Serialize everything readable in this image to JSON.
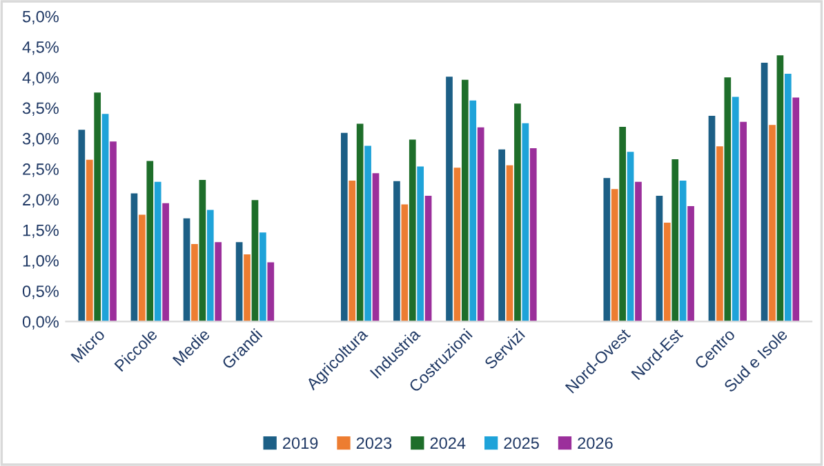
{
  "chart_data": {
    "type": "bar",
    "categories": [
      "Micro",
      "Piccole",
      "Medie",
      "Grandi",
      null,
      "Agricoltura",
      "Industria",
      "Costruzioni",
      "Servizi",
      null,
      "Nord-Ovest",
      "Nord-Est",
      "Centro",
      "Sud e Isole"
    ],
    "series": [
      {
        "name": "2019",
        "color": "#1c5f86",
        "values": [
          3.14,
          2.1,
          1.69,
          1.3,
          null,
          3.09,
          2.3,
          4.01,
          2.82,
          null,
          2.35,
          2.06,
          3.37,
          4.24
        ]
      },
      {
        "name": "2023",
        "color": "#ed7d31",
        "values": [
          2.65,
          1.75,
          1.27,
          1.1,
          null,
          2.31,
          1.92,
          2.52,
          2.56,
          null,
          2.17,
          1.62,
          2.87,
          3.22
        ]
      },
      {
        "name": "2024",
        "color": "#1e6e2a",
        "values": [
          3.75,
          2.63,
          2.32,
          1.99,
          null,
          3.24,
          2.98,
          3.96,
          3.57,
          null,
          3.19,
          2.66,
          4.0,
          4.36
        ]
      },
      {
        "name": "2025",
        "color": "#1fa3d9",
        "values": [
          3.4,
          2.29,
          1.83,
          1.46,
          null,
          2.88,
          2.54,
          3.62,
          3.25,
          null,
          2.78,
          2.31,
          3.68,
          4.06
        ]
      },
      {
        "name": "2026",
        "color": "#9b2f9b",
        "values": [
          2.95,
          1.94,
          1.3,
          0.97,
          null,
          2.43,
          2.06,
          3.18,
          2.84,
          null,
          2.29,
          1.89,
          3.27,
          3.67
        ]
      }
    ],
    "ylim": [
      0,
      5
    ],
    "yticks": [
      {
        "value": 0,
        "label": "0,0%"
      },
      {
        "value": 0.5,
        "label": "0,5%"
      },
      {
        "value": 1,
        "label": "1,0%"
      },
      {
        "value": 1.5,
        "label": "1,5%"
      },
      {
        "value": 2,
        "label": "2,0%"
      },
      {
        "value": 2.5,
        "label": "2,5%"
      },
      {
        "value": 3,
        "label": "3,0%"
      },
      {
        "value": 3.5,
        "label": "3,5%"
      },
      {
        "value": 4,
        "label": "4,0%"
      },
      {
        "value": 4.5,
        "label": "4,5%"
      },
      {
        "value": 5,
        "label": "5,0%"
      }
    ],
    "grid": false,
    "legend": "bottom"
  }
}
